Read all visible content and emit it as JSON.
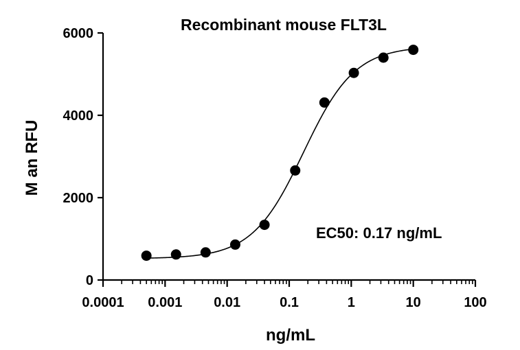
{
  "chart_data": {
    "type": "scatter",
    "title": "Recombinant mouse FLT3L",
    "xlabel": "ng/mL",
    "ylabel": "M  an RFU",
    "xscale": "log10",
    "xlim": [
      0.0001,
      100
    ],
    "ylim": [
      0,
      6000
    ],
    "x_ticks": [
      0.0001,
      0.001,
      0.01,
      0.1,
      1,
      10,
      100
    ],
    "x_tick_labels": [
      "0.0001",
      "0.001",
      "0.01",
      "0.1",
      "1",
      "10",
      "100"
    ],
    "y_ticks": [
      0,
      2000,
      4000,
      6000
    ],
    "y_tick_labels": [
      "0",
      "2000",
      "4000",
      "6000"
    ],
    "series": [
      {
        "name": "Recombinant mouse FLT3L",
        "x": [
          0.0005,
          0.0015,
          0.0045,
          0.0135,
          0.04,
          0.125,
          0.37,
          1.1,
          3.3,
          10
        ],
        "y": [
          590,
          620,
          670,
          860,
          1340,
          2660,
          4310,
          5030,
          5400,
          5590
        ]
      }
    ],
    "fit": {
      "model": "4PL",
      "bottom": 520,
      "top": 5680,
      "ec50": 0.17,
      "hill": 1.05
    },
    "annotation": "EC50: 0.17 ng/mL",
    "grid": false,
    "legend": "none"
  }
}
